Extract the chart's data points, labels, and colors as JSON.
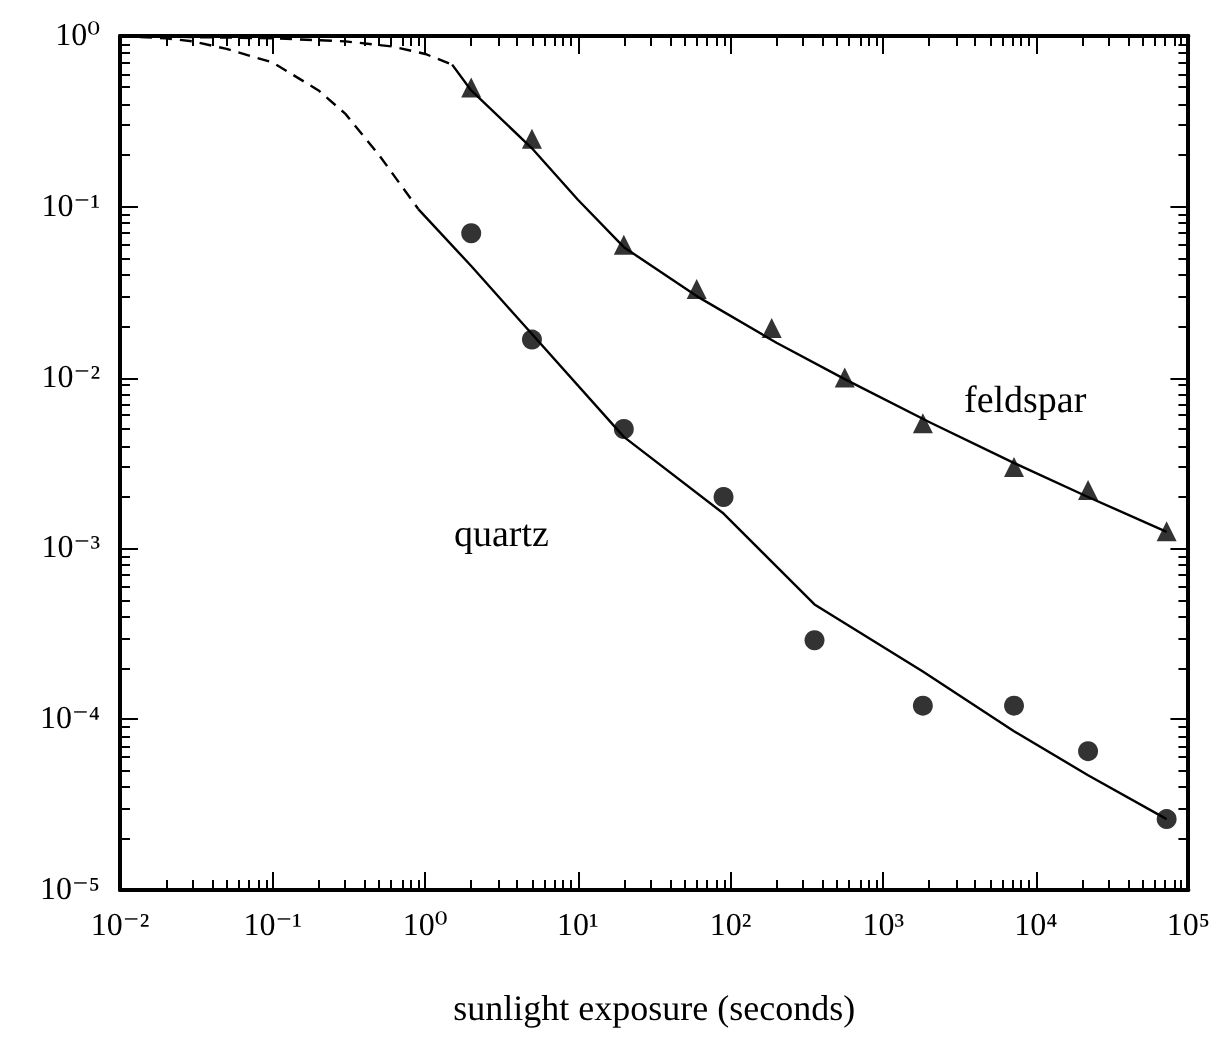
{
  "chart_data": {
    "type": "scatter",
    "xlabel": "sunlight exposure (seconds)",
    "log": "xy",
    "grid": false,
    "xlim": [
      0.01,
      100000
    ],
    "ylim": [
      1e-05,
      1
    ],
    "xticks": [
      {
        "value": 0.01,
        "label": "10⁻²"
      },
      {
        "value": 0.1,
        "label": "10⁻¹"
      },
      {
        "value": 1,
        "label": "10⁰"
      },
      {
        "value": 10,
        "label": "10¹"
      },
      {
        "value": 100,
        "label": "10²"
      },
      {
        "value": 1000,
        "label": "10³"
      },
      {
        "value": 10000,
        "label": "10⁴"
      },
      {
        "value": 100000,
        "label": "10⁵"
      }
    ],
    "yticks": [
      {
        "value": 1e-05,
        "label": "10⁻⁵"
      },
      {
        "value": 0.0001,
        "label": "10⁻⁴"
      },
      {
        "value": 0.001,
        "label": "10⁻³"
      },
      {
        "value": 0.01,
        "label": "10⁻²"
      },
      {
        "value": 0.1,
        "label": "10⁻¹"
      },
      {
        "value": 1,
        "label": "10⁰"
      }
    ],
    "series": [
      {
        "name": "feldspar",
        "marker": "triangle",
        "color": "#000000",
        "x": [
          2,
          5,
          20,
          60,
          186,
          560,
          1820,
          7200,
          22000,
          72000
        ],
        "values": [
          0.5,
          0.25,
          0.06,
          0.033,
          0.0195,
          0.01,
          0.0054,
          0.003,
          0.0022,
          0.00126
        ]
      },
      {
        "name": "quartz",
        "marker": "circle",
        "color": "#000000",
        "x": [
          2,
          5,
          20,
          90,
          355,
          1820,
          7200,
          22000,
          72000
        ],
        "values": [
          0.07,
          0.0167,
          0.005,
          0.002,
          0.00029,
          0.00012,
          0.00012,
          6.5e-05,
          2.6e-05
        ]
      },
      {
        "type": "line",
        "line_style": "dashed",
        "color": "#000000",
        "x": [
          0.01,
          0.1,
          0.3,
          0.6,
          1,
          1.5
        ],
        "values": [
          1,
          0.97,
          0.93,
          0.87,
          0.785,
          0.68
        ]
      },
      {
        "type": "line",
        "line_style": "solid",
        "color": "#000000",
        "x": [
          1.5,
          2,
          5,
          10,
          20,
          60,
          200,
          560,
          2000,
          7000,
          22000,
          72000
        ],
        "values": [
          0.68,
          0.48,
          0.22,
          0.11,
          0.058,
          0.03,
          0.016,
          0.0098,
          0.0055,
          0.0032,
          0.002,
          0.00125
        ]
      },
      {
        "type": "line",
        "line_style": "dashed",
        "color": "#000000",
        "x": [
          0.01,
          0.02,
          0.03,
          0.05,
          0.1,
          0.2,
          0.3,
          0.5,
          0.9
        ],
        "values": [
          1,
          0.97,
          0.93,
          0.84,
          0.7,
          0.48,
          0.35,
          0.2,
          0.097
        ]
      },
      {
        "type": "line",
        "line_style": "solid",
        "color": "#000000",
        "x": [
          0.9,
          2,
          5,
          20,
          90,
          355,
          1820,
          7200,
          22000,
          72000
        ],
        "values": [
          0.097,
          0.045,
          0.018,
          0.0045,
          0.0016,
          0.00047,
          0.00019,
          8.5e-05,
          4.7e-05,
          2.6e-05
        ]
      }
    ]
  }
}
